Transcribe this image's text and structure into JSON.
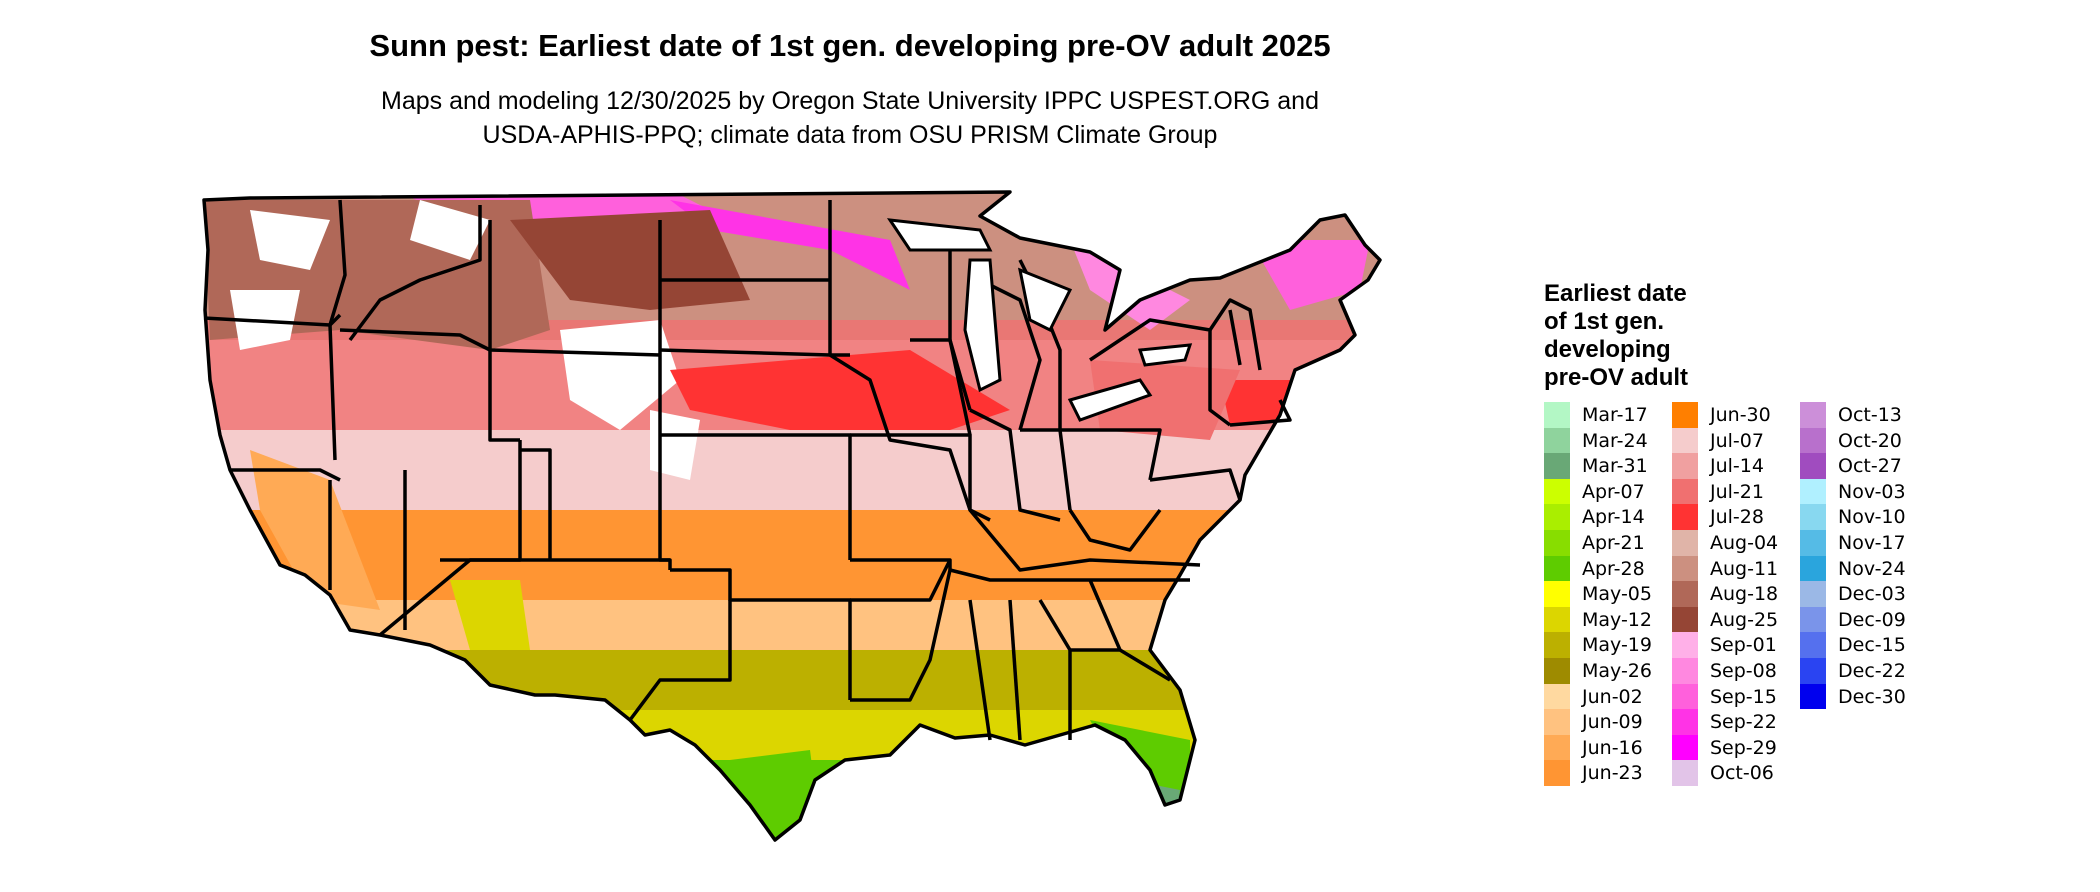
{
  "title": "Sunn pest: Earliest date of 1st gen. developing pre-OV adult 2025",
  "subtitle": {
    "line1": "Maps and modeling 12/30/2025 by Oregon State University IPPC USPEST.ORG and",
    "line2": "USDA-APHIS-PPQ; climate data from OSU PRISM Climate Group"
  },
  "legend": {
    "title_lines": [
      "Earliest date",
      "of 1st gen.",
      "developing",
      "pre-OV adult"
    ],
    "columns": [
      [
        {
          "label": "Mar-17",
          "color": "#b3f7c5"
        },
        {
          "label": "Mar-24",
          "color": "#8fd39d"
        },
        {
          "label": "Mar-31",
          "color": "#69a876"
        },
        {
          "label": "Apr-07",
          "color": "#ccff00"
        },
        {
          "label": "Apr-14",
          "color": "#aaee00"
        },
        {
          "label": "Apr-21",
          "color": "#88dd00"
        },
        {
          "label": "Apr-28",
          "color": "#5ecc00"
        },
        {
          "label": "May-05",
          "color": "#ffff00"
        },
        {
          "label": "May-12",
          "color": "#dcd600"
        },
        {
          "label": "May-19",
          "color": "#bcb000"
        },
        {
          "label": "May-26",
          "color": "#9e8b00"
        },
        {
          "label": "Jun-02",
          "color": "#ffd9a0"
        },
        {
          "label": "Jun-09",
          "color": "#ffc280"
        },
        {
          "label": "Jun-16",
          "color": "#ffaa55"
        },
        {
          "label": "Jun-23",
          "color": "#ff9533"
        }
      ],
      [
        {
          "label": "Jun-30",
          "color": "#ff7f00"
        },
        {
          "label": "Jul-07",
          "color": "#f5cccc"
        },
        {
          "label": "Jul-14",
          "color": "#f0a0a0"
        },
        {
          "label": "Jul-21",
          "color": "#f07070"
        },
        {
          "label": "Jul-28",
          "color": "#ff3333"
        },
        {
          "label": "Aug-04",
          "color": "#e0b4a8"
        },
        {
          "label": "Aug-11",
          "color": "#cc9080"
        },
        {
          "label": "Aug-18",
          "color": "#b06858"
        },
        {
          "label": "Aug-25",
          "color": "#954535"
        },
        {
          "label": "Sep-01",
          "color": "#ffb0e8"
        },
        {
          "label": "Sep-08",
          "color": "#ff88e0"
        },
        {
          "label": "Sep-15",
          "color": "#ff60dc"
        },
        {
          "label": "Sep-22",
          "color": "#ff33e6"
        },
        {
          "label": "Sep-29",
          "color": "#ff00ff"
        },
        {
          "label": "Oct-06",
          "color": "#e2c4e8"
        }
      ],
      [
        {
          "label": "Oct-13",
          "color": "#cc8fd9"
        },
        {
          "label": "Oct-20",
          "color": "#b870cc"
        },
        {
          "label": "Oct-27",
          "color": "#a04cbf"
        },
        {
          "label": "Nov-03",
          "color": "#b0f0ff"
        },
        {
          "label": "Nov-10",
          "color": "#88d8f0"
        },
        {
          "label": "Nov-17",
          "color": "#55bbe6"
        },
        {
          "label": "Nov-24",
          "color": "#2aa5dd"
        },
        {
          "label": "Dec-03",
          "color": "#9bb8e6"
        },
        {
          "label": "Dec-09",
          "color": "#7a94ea"
        },
        {
          "label": "Dec-15",
          "color": "#5570ee"
        },
        {
          "label": "Dec-22",
          "color": "#2a44f2"
        },
        {
          "label": "Dec-30",
          "color": "#0000ee"
        }
      ]
    ]
  }
}
